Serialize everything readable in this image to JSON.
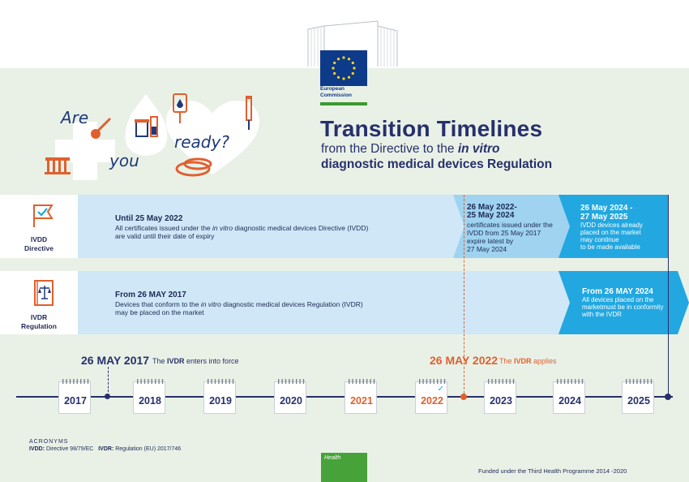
{
  "logo": {
    "line1": "European",
    "line2": "Commission"
  },
  "hero": {
    "are": "Are",
    "you": "you",
    "ready": "ready?"
  },
  "title": {
    "main": "Transition Timelines",
    "sub1_a": "from the Directive to the ",
    "sub1_b": "in vitro",
    "sub2": "diagnostic medical devices Regulation"
  },
  "row1": {
    "label": "IVDD Directive",
    "label_l1": "IVDD",
    "label_l2": "Directive",
    "a_head": "Until 25 May 2022",
    "a_l1_a": "All certificates issued under the ",
    "a_l1_b": "in vitro",
    "a_l1_c": " diagnostic medical devices Directive (IVDD)",
    "a_l2": "are valid until their date of expiry",
    "b_head_l1": "26 May 2022-",
    "b_head_l2": "25 May 2024",
    "b_l1": "certificates issued under the",
    "b_l2": "IVDD from 25 May 2017",
    "b_l3": "expire latest by",
    "b_l4": "27 May 2024",
    "c_head_l1": "26 May 2024 -",
    "c_head_l2": "27 May 2025",
    "c_l1": "IVDD devices already",
    "c_l2": "placed on the market",
    "c_l3": "may continue",
    "c_l4": "to be made available"
  },
  "row2": {
    "label_l1": "IVDR",
    "label_l2": "Regulation",
    "a_head": "From 26 MAY 2017",
    "a_l1_a": "Devices that conform to the ",
    "a_l1_b": "in vitro",
    "a_l1_c": " diagnostic medical devices Regulation (IVDR)",
    "a_l2": "may be placed on the market",
    "c_head": "From 26 MAY 2024",
    "c_l1": "All devices placed on the",
    "c_l2": "marketmust be in conformity",
    "c_l3": "with the IVDR"
  },
  "timeline": {
    "date1": "26 MAY 2017",
    "note1_a": "The ",
    "note1_b": "IVDR",
    "note1_c": " enters into force",
    "date2": "26 MAY 2022",
    "note2_a": "The ",
    "note2_b": "IVDR",
    "note2_c": " applies",
    "years": [
      "2017",
      "2018",
      "2019",
      "2020",
      "2021",
      "2022",
      "2023",
      "2024",
      "2025"
    ]
  },
  "footer": {
    "acronyms": "ACRONYMS",
    "ivdd_k": "IVDD:",
    "ivdd_v": " Directive 98/79/EC",
    "ivdr_k": "IVDR:",
    "ivdr_v": " Regulation (EU) 2017/746",
    "health": "Health",
    "funded": "Funded under the Third Health Programme 2014 -2020"
  },
  "colors": {
    "navy": "#27306b",
    "orange": "#e0602f",
    "light_blue": "#cfe7f6",
    "mid_blue": "#9fd3ef",
    "bright_blue": "#22a7e0",
    "green": "#47a23a",
    "bg_green": "#e9f1e7"
  }
}
